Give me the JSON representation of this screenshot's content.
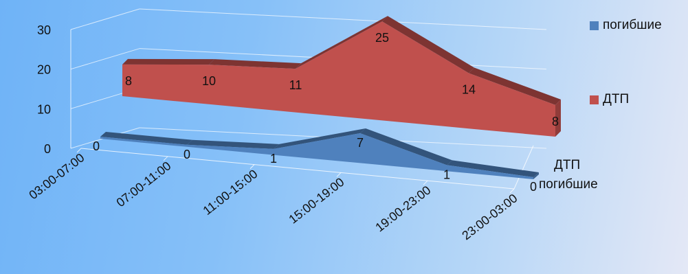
{
  "chart_data": {
    "type": "area",
    "view": "3d",
    "categories": [
      "03:00-07:00",
      "07:00-11:00",
      "11:00-15:00",
      "15:00-19:00",
      "19:00-23:00",
      "23:00-03:00"
    ],
    "series": [
      {
        "name": "погибшие",
        "values": [
          0,
          0,
          1,
          7,
          1,
          0
        ],
        "color": "#4f81bd"
      },
      {
        "name": "ДТП",
        "values": [
          8,
          10,
          11,
          25,
          14,
          8
        ],
        "color": "#c0504d"
      }
    ],
    "depth_labels": [
      "ДТП",
      "погибшие"
    ],
    "y_ticks": [
      0,
      10,
      20,
      30
    ],
    "ylim": [
      0,
      30
    ],
    "grid": true,
    "legend": "right",
    "data_labels": true
  }
}
